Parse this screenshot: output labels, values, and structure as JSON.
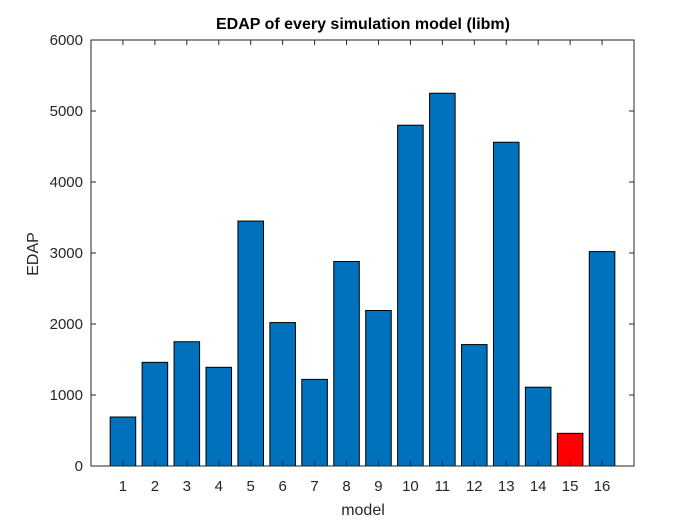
{
  "chart_data": {
    "type": "bar",
    "title": "EDAP of every simulation model (libm)",
    "xlabel": "model",
    "ylabel": "EDAP",
    "categories": [
      "1",
      "2",
      "3",
      "4",
      "5",
      "6",
      "7",
      "8",
      "9",
      "10",
      "11",
      "12",
      "13",
      "14",
      "15",
      "16"
    ],
    "values": [
      690,
      1460,
      1750,
      1390,
      3450,
      2020,
      1220,
      2880,
      2190,
      4800,
      5250,
      1710,
      4560,
      1110,
      460,
      3020
    ],
    "ylim": [
      0,
      6000
    ],
    "yticks": [
      0,
      1000,
      2000,
      3000,
      4000,
      5000,
      6000
    ],
    "grid": false,
    "legend": "none",
    "colors": {
      "bar": "#0072BD",
      "highlight": "#FF0000",
      "edge": "#000000"
    },
    "highlight_index": 14
  }
}
